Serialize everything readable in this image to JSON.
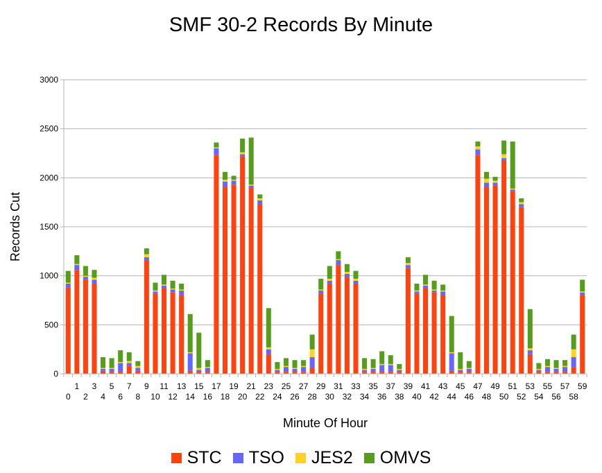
{
  "chart_data": {
    "type": "bar",
    "stacked": true,
    "title": "SMF 30-2 Records By Minute",
    "xlabel": "Minute Of Hour",
    "ylabel": "Records Cut",
    "ylim": [
      0,
      3000
    ],
    "yticks": [
      0,
      500,
      1000,
      1500,
      2000,
      2500,
      3000
    ],
    "grid": true,
    "legend_position": "bottom",
    "categories": [
      "0",
      "1",
      "2",
      "3",
      "4",
      "5",
      "6",
      "7",
      "8",
      "9",
      "10",
      "11",
      "12",
      "13",
      "14",
      "15",
      "16",
      "17",
      "18",
      "19",
      "20",
      "21",
      "22",
      "23",
      "24",
      "25",
      "26",
      "27",
      "28",
      "29",
      "30",
      "31",
      "32",
      "33",
      "34",
      "35",
      "36",
      "37",
      "38",
      "39",
      "40",
      "41",
      "42",
      "43",
      "44",
      "45",
      "46",
      "47",
      "48",
      "49",
      "50",
      "51",
      "52",
      "53",
      "54",
      "55",
      "56",
      "57",
      "58",
      "59"
    ],
    "series": [
      {
        "name": "STC",
        "color": "#ff420e",
        "values": [
          880,
          1060,
          960,
          920,
          30,
          20,
          20,
          80,
          30,
          1160,
          820,
          870,
          830,
          800,
          30,
          20,
          20,
          2230,
          1910,
          1930,
          2220,
          1900,
          1730,
          200,
          20,
          20,
          20,
          20,
          60,
          820,
          920,
          1110,
          990,
          920,
          20,
          20,
          20,
          20,
          20,
          1080,
          820,
          870,
          830,
          800,
          30,
          20,
          20,
          2230,
          1910,
          1920,
          2180,
          1860,
          1700,
          200,
          20,
          20,
          20,
          20,
          70,
          800
        ]
      },
      {
        "name": "TSO",
        "color": "#6666ff",
        "values": [
          40,
          50,
          30,
          40,
          20,
          30,
          90,
          30,
          30,
          30,
          20,
          30,
          30,
          50,
          180,
          20,
          40,
          70,
          50,
          40,
          20,
          20,
          40,
          50,
          20,
          50,
          30,
          50,
          110,
          30,
          30,
          50,
          30,
          30,
          20,
          30,
          70,
          70,
          20,
          30,
          20,
          30,
          20,
          40,
          180,
          20,
          30,
          60,
          40,
          30,
          20,
          20,
          30,
          40,
          20,
          50,
          30,
          50,
          100,
          30
        ]
      },
      {
        "name": "JES2",
        "color": "#ffd320",
        "values": [
          10,
          10,
          10,
          20,
          10,
          10,
          10,
          20,
          20,
          30,
          10,
          10,
          10,
          10,
          10,
          20,
          10,
          10,
          20,
          10,
          20,
          10,
          20,
          20,
          10,
          10,
          10,
          10,
          80,
          10,
          20,
          10,
          20,
          20,
          10,
          10,
          10,
          10,
          10,
          20,
          10,
          10,
          10,
          10,
          10,
          10,
          10,
          30,
          40,
          20,
          40,
          10,
          20,
          20,
          10,
          10,
          10,
          10,
          80,
          10
        ]
      },
      {
        "name": "OMVS",
        "color": "#579d1c",
        "values": [
          120,
          90,
          100,
          80,
          110,
          100,
          120,
          90,
          50,
          60,
          80,
          100,
          80,
          60,
          390,
          360,
          70,
          50,
          80,
          40,
          140,
          480,
          40,
          400,
          70,
          80,
          80,
          60,
          150,
          110,
          130,
          80,
          80,
          80,
          110,
          90,
          130,
          90,
          50,
          60,
          70,
          100,
          90,
          60,
          370,
          170,
          70,
          50,
          70,
          40,
          140,
          480,
          40,
          400,
          60,
          70,
          80,
          60,
          150,
          120
        ]
      }
    ]
  }
}
